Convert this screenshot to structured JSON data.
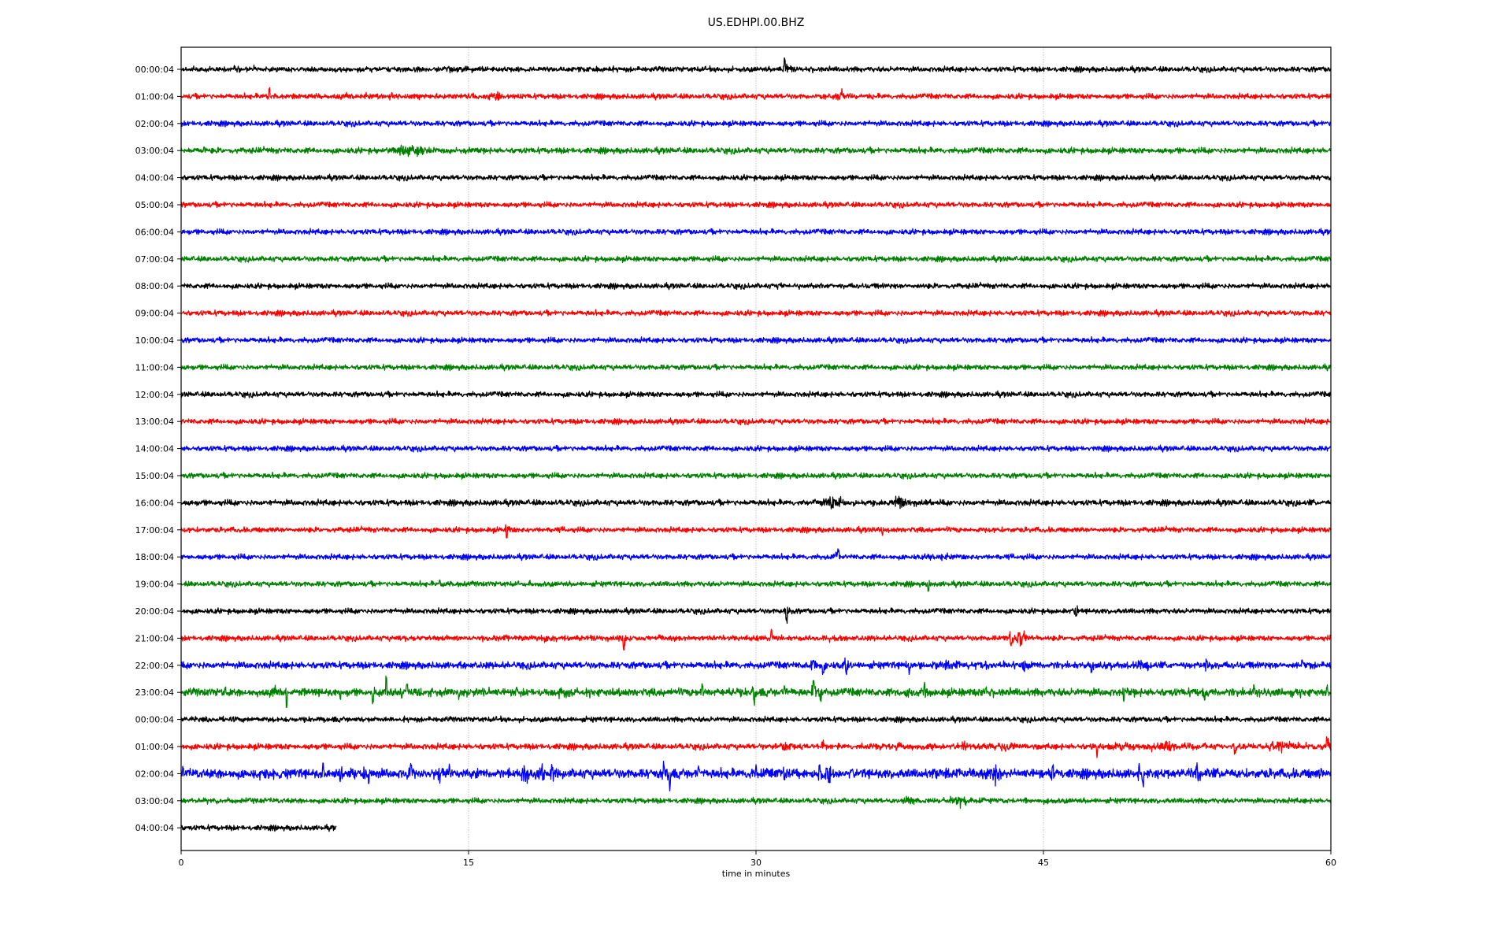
{
  "chart_data": {
    "type": "line",
    "title": "US.EDHPI.00.BHZ",
    "xlabel": "time in minutes",
    "ylabel": "",
    "xlim": [
      0,
      60
    ],
    "xticks": [
      "0",
      "15",
      "30",
      "45",
      "60"
    ],
    "grid": "vertical at 15, 30, 45 minutes",
    "colors": [
      "#000000",
      "#ff0000",
      "#0000ff",
      "#008000"
    ],
    "rows": [
      {
        "label": "00:00:04",
        "noise": 1,
        "events": [
          [
            3.4,
            2,
            0.3
          ],
          [
            31.5,
            9,
            0.05
          ],
          [
            31.6,
            4,
            0.2
          ]
        ]
      },
      {
        "label": "01:00:04",
        "noise": 1,
        "events": [
          [
            4.6,
            7,
            0.05
          ],
          [
            8.5,
            2,
            0.8
          ],
          [
            11,
            3,
            0.1
          ],
          [
            16.5,
            4,
            0.3
          ],
          [
            34.5,
            4,
            0.4
          ]
        ]
      },
      {
        "label": "02:00:04",
        "noise": 1,
        "events": []
      },
      {
        "label": "03:00:04",
        "noise": 1.1,
        "events": [
          [
            1.2,
            3,
            0.05
          ],
          [
            11.7,
            7,
            0.4
          ],
          [
            12.3,
            4,
            0.5
          ]
        ]
      },
      {
        "label": "04:00:04",
        "noise": 1,
        "events": []
      },
      {
        "label": "05:00:04",
        "noise": 1,
        "events": []
      },
      {
        "label": "06:00:04",
        "noise": 1,
        "events": []
      },
      {
        "label": "07:00:04",
        "noise": 1,
        "events": []
      },
      {
        "label": "08:00:04",
        "noise": 1,
        "events": [
          [
            31.3,
            2,
            0.05
          ]
        ]
      },
      {
        "label": "09:00:04",
        "noise": 1,
        "events": []
      },
      {
        "label": "10:00:04",
        "noise": 1,
        "events": []
      },
      {
        "label": "11:00:04",
        "noise": 1,
        "events": []
      },
      {
        "label": "12:00:04",
        "noise": 1,
        "events": []
      },
      {
        "label": "13:00:04",
        "noise": 1,
        "events": []
      },
      {
        "label": "14:00:04",
        "noise": 1,
        "events": [
          [
            47.5,
            2,
            0.05
          ]
        ]
      },
      {
        "label": "15:00:04",
        "noise": 1,
        "events": []
      },
      {
        "label": "16:00:04",
        "noise": 1.1,
        "events": [
          [
            34,
            6,
            0.4
          ],
          [
            37.5,
            5,
            0.5
          ],
          [
            59.5,
            2,
            0.3
          ]
        ]
      },
      {
        "label": "17:00:04",
        "noise": 1,
        "events": [
          [
            17,
            -9,
            0.05
          ],
          [
            36.6,
            -4,
            0.1
          ]
        ]
      },
      {
        "label": "18:00:04",
        "noise": 1,
        "events": [
          [
            34.3,
            7,
            0.08
          ],
          [
            39.6,
            4,
            0.2
          ]
        ]
      },
      {
        "label": "19:00:04",
        "noise": 1,
        "events": [
          [
            13.5,
            2,
            0.05
          ],
          [
            18.2,
            3,
            0.1
          ],
          [
            39,
            -6,
            0.08
          ]
        ]
      },
      {
        "label": "20:00:04",
        "noise": 1,
        "events": [
          [
            31.6,
            -9,
            0.08
          ],
          [
            46.7,
            -5,
            0.1
          ]
        ]
      },
      {
        "label": "21:00:04",
        "noise": 1,
        "events": [
          [
            19,
            2,
            2
          ],
          [
            23.1,
            -12,
            0.08
          ],
          [
            30.8,
            7,
            0.1
          ],
          [
            43.3,
            -8,
            0.1
          ],
          [
            43.9,
            8,
            0.3
          ]
        ]
      },
      {
        "label": "22:00:04",
        "noise": 1.3,
        "events": [
          [
            14.5,
            3,
            0.05
          ],
          [
            33,
            6,
            0.1
          ],
          [
            33.5,
            -8,
            0.1
          ],
          [
            34.7,
            -9,
            0.1
          ],
          [
            38,
            -6,
            0.1
          ],
          [
            40,
            4,
            0.5
          ],
          [
            42,
            4,
            0.3
          ],
          [
            44,
            -6,
            0.1
          ],
          [
            47.5,
            -6,
            0.1
          ],
          [
            50,
            4,
            0.5
          ],
          [
            53.5,
            5,
            0.1
          ],
          [
            58.5,
            5,
            0.1
          ]
        ]
      },
      {
        "label": "23:00:04",
        "noise": 1.5,
        "events": [
          [
            2.3,
            3,
            0.05
          ],
          [
            4.8,
            6,
            0.2
          ],
          [
            5.5,
            -14,
            0.05
          ],
          [
            8.3,
            -5,
            0.05
          ],
          [
            10,
            -10,
            0.05
          ],
          [
            10.7,
            12,
            0.05
          ],
          [
            11.5,
            -7,
            0.05
          ],
          [
            11.8,
            9,
            0.05
          ],
          [
            14.5,
            -5,
            0.1
          ],
          [
            17.5,
            4,
            0.05
          ],
          [
            20,
            5,
            0.3
          ],
          [
            27.2,
            8,
            0.1
          ],
          [
            29.9,
            -12,
            0.08
          ],
          [
            31.5,
            6,
            0.1
          ],
          [
            33,
            11,
            0.08
          ],
          [
            33.4,
            -8,
            0.1
          ],
          [
            38,
            6,
            0.2
          ],
          [
            38.8,
            11,
            0.05
          ],
          [
            42,
            5,
            0.05
          ],
          [
            49.2,
            -9,
            0.05
          ],
          [
            53.4,
            -7,
            0.1
          ],
          [
            56,
            5,
            0.05
          ],
          [
            59.8,
            6,
            0.1
          ]
        ]
      },
      {
        "label": "00:00:04",
        "noise": 1,
        "events": []
      },
      {
        "label": "01:00:04",
        "noise": 1.1,
        "events": [
          [
            31.5,
            5,
            0.3
          ],
          [
            33.5,
            5,
            0.2
          ],
          [
            37.5,
            4,
            0.5
          ],
          [
            41,
            5,
            0.3
          ],
          [
            43,
            5,
            0.5
          ],
          [
            47.8,
            -9,
            0.05
          ],
          [
            49,
            5,
            0.4
          ],
          [
            51.5,
            5,
            0.5
          ],
          [
            55,
            -6,
            0.1
          ],
          [
            57.5,
            5,
            0.8
          ],
          [
            59.8,
            8,
            0.1
          ]
        ]
      },
      {
        "label": "02:00:04",
        "noise": 1.8,
        "events": [
          [
            0.1,
            5,
            0.05
          ],
          [
            4.5,
            5,
            0.2
          ],
          [
            7.4,
            8,
            0.05
          ],
          [
            8.3,
            -7,
            0.1
          ],
          [
            9.5,
            6,
            0.2
          ],
          [
            9.8,
            -8,
            0.05
          ],
          [
            12,
            7,
            0.1
          ],
          [
            13.5,
            -6,
            0.1
          ],
          [
            14,
            6,
            0.1
          ],
          [
            18,
            9,
            0.3
          ],
          [
            18.8,
            10,
            0.2
          ],
          [
            19.4,
            9,
            0.2
          ],
          [
            25.2,
            9,
            0.05
          ],
          [
            25.5,
            -12,
            0.05
          ],
          [
            27,
            6,
            0.1
          ],
          [
            30,
            6,
            0.1
          ],
          [
            31.5,
            -5,
            0.2
          ],
          [
            33.3,
            10,
            0.1
          ],
          [
            33.8,
            -9,
            0.1
          ],
          [
            35,
            4,
            0.1
          ],
          [
            40,
            5,
            0.2
          ],
          [
            42.5,
            -8,
            0.3
          ],
          [
            45.5,
            7,
            0.1
          ],
          [
            50,
            9,
            0.05
          ],
          [
            50.2,
            -11,
            0.05
          ],
          [
            53,
            7,
            0.1
          ],
          [
            54.5,
            -8,
            0.2
          ],
          [
            59.5,
            4,
            0.1
          ]
        ]
      },
      {
        "label": "03:00:04",
        "noise": 1,
        "events": [
          [
            38,
            -4,
            0.3
          ],
          [
            40.5,
            6,
            0.5
          ]
        ]
      },
      {
        "label": "04:00:04",
        "noise": 1,
        "end": 8.1,
        "events": []
      }
    ]
  }
}
